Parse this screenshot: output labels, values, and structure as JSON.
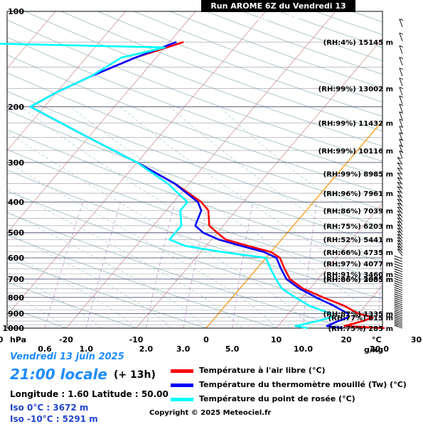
{
  "header": {
    "title": "Run AROME 6Z du Vendredi 13 juin 2025"
  },
  "info": {
    "date": "Vendredi 13 juin 2025",
    "time": "21:00 locale",
    "offset": "(+ 13h)",
    "coords": "Longitude : 1.60   Latitude : 50.00",
    "iso0": "Iso 0°C : 3672 m",
    "iso10": "Iso -10°C : 5291 m",
    "copyright": "Copyright © 2025 Meteociel.fr"
  },
  "legend": [
    {
      "label": "Température à l'air libre (°C)",
      "color": "#ff0000"
    },
    {
      "label": "Température du thermomètre mouillé (Tw) (°C)",
      "color": "#0000ff"
    },
    {
      "label": "Température du point de rosée (°C)",
      "color": "#00ffff"
    }
  ],
  "chart_data": {
    "type": "line",
    "title": "Run AROME 6Z du Vendredi 13 juin 2025",
    "xlabel": "°C",
    "ylabel": "hPa",
    "x_unit_label": "°C",
    "y_unit_label": "hPa",
    "mixing_unit_label": "g/kg",
    "xlim": [
      -45,
      45
    ],
    "ylim": [
      1000,
      100
    ],
    "y_scale": "log",
    "skew": "skew-T",
    "x_ticks": [
      "-40",
      "-30",
      "-20",
      "-10",
      "0",
      "10",
      "20",
      "30",
      "40"
    ],
    "y_ticks": [
      "100",
      "200",
      "300",
      "400",
      "500",
      "600",
      "700",
      "800",
      "900",
      "1000"
    ],
    "mixing_ratio_ticks": [
      "0.1",
      "0.2",
      "0.6",
      "1.0",
      "2.0",
      "3.0",
      "5.0",
      "10.0",
      "20.0",
      "40.0"
    ],
    "levels": [
      {
        "p": 1000,
        "label": "(RH:75%) 285 m"
      },
      {
        "p": 925,
        "label": "(RH:77%) 815 m"
      },
      {
        "p": 900,
        "label": "(RH:87%) 1335 m"
      },
      {
        "p": 700,
        "label": "(RH:86%) 2855 m"
      },
      {
        "p": 700,
        "label": "(RH:86%) 3085 m"
      },
      {
        "p": 675,
        "label": "(RH:91%) 3460 m"
      },
      {
        "p": 625,
        "label": "(RH:97%) 4077 m"
      },
      {
        "p": 575,
        "label": "(RH:66%) 4735 m"
      },
      {
        "p": 525,
        "label": "(RH:52%) 5441 m"
      },
      {
        "p": 475,
        "label": "(RH:75%) 6203 m"
      },
      {
        "p": 425,
        "label": "(RH:86%) 7039 m"
      },
      {
        "p": 375,
        "label": "(RH:96%) 7961 m"
      },
      {
        "p": 325,
        "label": "(RH:99%) 8985 m"
      },
      {
        "p": 275,
        "label": "(RH:99%) 10116 m"
      },
      {
        "p": 225,
        "label": "(RH:99%) 11432 m"
      },
      {
        "p": 175,
        "label": "(RH:99%) 13002 m"
      },
      {
        "p": 125,
        "label": "(RH:4%) 15145 m"
      }
    ],
    "series": [
      {
        "name": "Température à l'air libre (°C)",
        "color": "#ff0000",
        "points": [
          [
            1000,
            25.5
          ],
          [
            985,
            19.5
          ],
          [
            950,
            21.5
          ],
          [
            925,
            22.5
          ],
          [
            900,
            20
          ],
          [
            850,
            17
          ],
          [
            800,
            13
          ],
          [
            750,
            9
          ],
          [
            700,
            6
          ],
          [
            650,
            4
          ],
          [
            600,
            2
          ],
          [
            575,
            0
          ],
          [
            550,
            -4
          ],
          [
            525,
            -8
          ],
          [
            500,
            -10
          ],
          [
            475,
            -12
          ],
          [
            425,
            -14
          ],
          [
            400,
            -16
          ],
          [
            350,
            -22
          ],
          [
            300,
            -30
          ],
          [
            250,
            -40
          ],
          [
            200,
            -52
          ],
          [
            180,
            -50
          ],
          [
            160,
            -47
          ],
          [
            140,
            -43
          ],
          [
            125,
            -38
          ]
        ]
      },
      {
        "name": "Température du thermomètre mouillé (Tw) (°C)",
        "color": "#0000ff",
        "points": [
          [
            1000,
            19.5
          ],
          [
            985,
            17
          ],
          [
            950,
            18
          ],
          [
            925,
            19
          ],
          [
            900,
            18.5
          ],
          [
            850,
            15.5
          ],
          [
            800,
            12
          ],
          [
            750,
            8.5
          ],
          [
            700,
            5.5
          ],
          [
            650,
            3.5
          ],
          [
            600,
            1.5
          ],
          [
            575,
            -1
          ],
          [
            550,
            -5
          ],
          [
            525,
            -9
          ],
          [
            500,
            -12
          ],
          [
            475,
            -14
          ],
          [
            425,
            -15
          ],
          [
            400,
            -16.5
          ],
          [
            350,
            -22
          ],
          [
            300,
            -30
          ],
          [
            250,
            -40
          ],
          [
            200,
            -52
          ],
          [
            180,
            -50
          ],
          [
            160,
            -47
          ],
          [
            140,
            -43
          ],
          [
            125,
            -39
          ]
        ]
      },
      {
        "name": "Température du point de rosée (°C)",
        "color": "#00ffff",
        "points": [
          [
            1000,
            14.5
          ],
          [
            985,
            12.5
          ],
          [
            950,
            15
          ],
          [
            925,
            16.5
          ],
          [
            900,
            16
          ],
          [
            850,
            12
          ],
          [
            800,
            9
          ],
          [
            750,
            6
          ],
          [
            700,
            4
          ],
          [
            650,
            2
          ],
          [
            600,
            0
          ],
          [
            575,
            -7
          ],
          [
            550,
            -13
          ],
          [
            525,
            -16
          ],
          [
            500,
            -16
          ],
          [
            475,
            -16
          ],
          [
            425,
            -18
          ],
          [
            400,
            -18
          ],
          [
            350,
            -23
          ],
          [
            300,
            -30
          ],
          [
            250,
            -40
          ],
          [
            200,
            -52
          ],
          [
            180,
            -50
          ],
          [
            160,
            -47
          ],
          [
            140,
            -45
          ],
          [
            130,
            -40
          ],
          [
            125,
            -75
          ]
        ]
      }
    ],
    "grid": true
  }
}
